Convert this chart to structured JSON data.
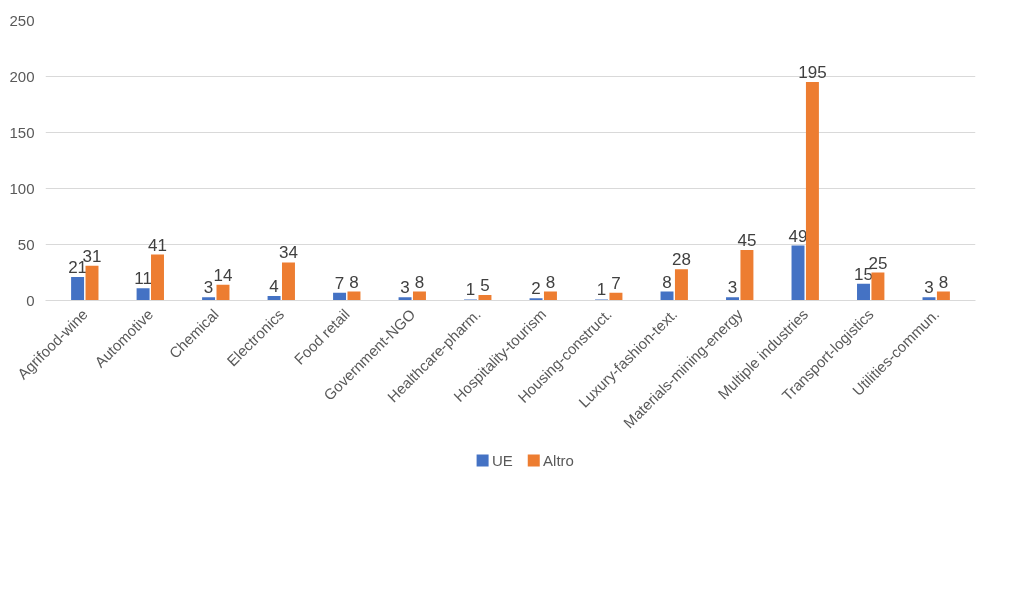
{
  "chart_data": {
    "type": "bar",
    "categories": [
      "Agrifood-wine",
      "Automotive",
      "Chemical",
      "Electronics",
      "Food retail",
      "Government-NGO",
      "Healthcare-pharm.",
      "Hospitality-tourism",
      "Housing-construct.",
      "Luxury-fashion-text.",
      "Materials-mining-energy",
      "Multiple industries",
      "Transport-logistics",
      "Utilities-commun."
    ],
    "series": [
      {
        "name": "UE",
        "color": "#4472c4",
        "values": [
          21,
          11,
          3,
          4,
          7,
          3,
          1,
          2,
          1,
          8,
          3,
          49,
          15,
          3
        ]
      },
      {
        "name": "Altro",
        "color": "#ed7d31",
        "values": [
          31,
          41,
          14,
          34,
          8,
          8,
          5,
          8,
          7,
          28,
          45,
          195,
          25,
          8
        ]
      }
    ],
    "ylim": [
      0,
      250
    ],
    "yticks": [
      0,
      50,
      100,
      150,
      200,
      250
    ],
    "grid": "y",
    "legend": "bottom",
    "data_labels": true
  }
}
